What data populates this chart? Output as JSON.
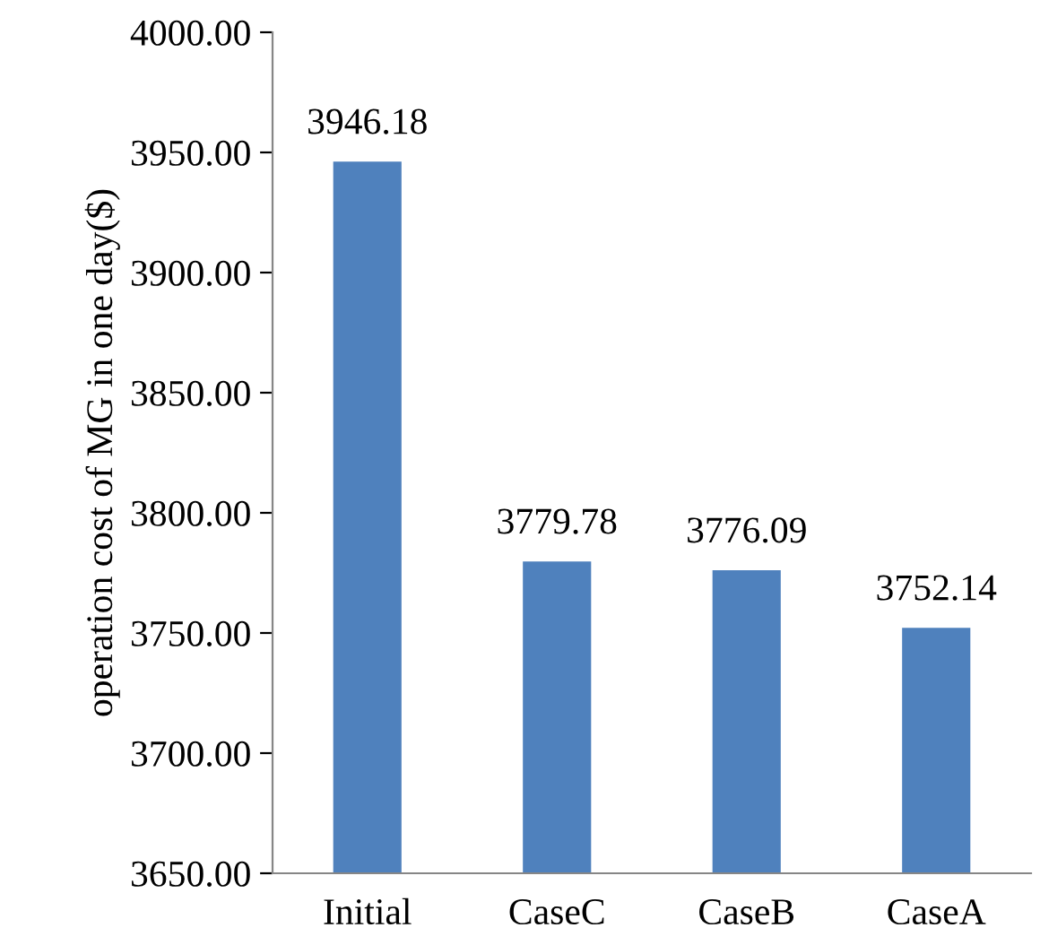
{
  "chart_data": {
    "type": "bar",
    "ylabel": "operation cost of MG in one day($)",
    "categories": [
      "Initial",
      "CaseC",
      "CaseB",
      "CaseA"
    ],
    "values": [
      3946.18,
      3779.78,
      3776.09,
      3752.14
    ],
    "color": "#4f81bd",
    "data_labels": true,
    "grid": false,
    "legend": false,
    "ylim": [
      3650,
      4000
    ],
    "yticks": [
      {
        "value": 3650,
        "label": "3650.00"
      },
      {
        "value": 3700,
        "label": "3700.00"
      },
      {
        "value": 3750,
        "label": "3750.00"
      },
      {
        "value": 3800,
        "label": "3800.00"
      },
      {
        "value": 3850,
        "label": "3850.00"
      },
      {
        "value": 3900,
        "label": "3900.00"
      },
      {
        "value": 3950,
        "label": "3950.00"
      },
      {
        "value": 4000,
        "label": "4000.00"
      }
    ]
  }
}
